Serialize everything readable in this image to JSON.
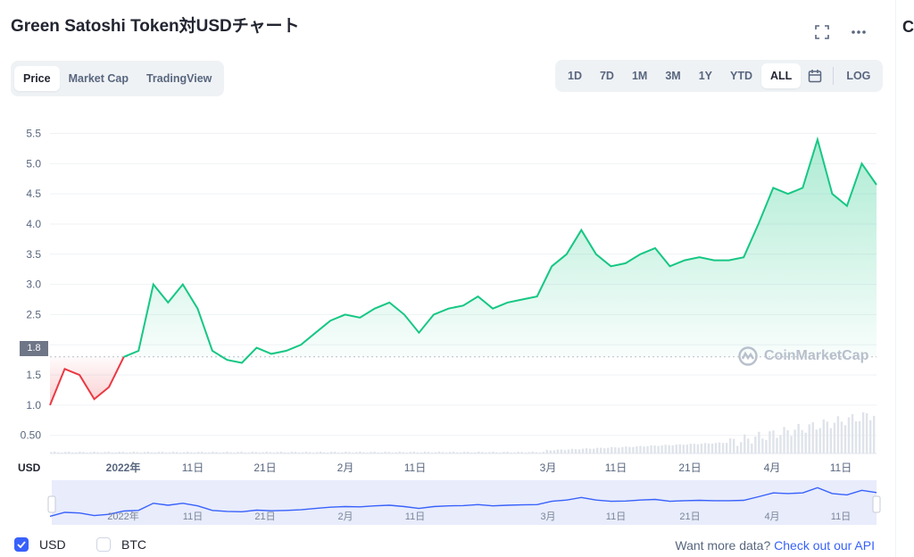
{
  "header": {
    "title": "Green Satoshi Token対USDチャート",
    "truncated_next_panel_char": "C"
  },
  "tabs": {
    "items": [
      "Price",
      "Market Cap",
      "TradingView"
    ],
    "active": "Price"
  },
  "ranges": {
    "items": [
      "1D",
      "7D",
      "1M",
      "3M",
      "1Y",
      "YTD",
      "ALL"
    ],
    "active": "ALL",
    "log_label": "LOG"
  },
  "axis": {
    "currency_label": "USD",
    "y_ticks": [
      "5.5",
      "5.0",
      "4.5",
      "4.0",
      "3.5",
      "3.0",
      "2.5",
      "2.0",
      "1.5",
      "1.0",
      "0.50"
    ],
    "x_ticks": [
      "2022年",
      "11日",
      "21日",
      "2月",
      "11日",
      "3月",
      "11日",
      "21日",
      "4月",
      "11日"
    ],
    "current_price_tag": "1.8"
  },
  "watermark": "CoinMarketCap",
  "legend": {
    "usd_label": "USD",
    "btc_label": "BTC",
    "usd_checked": true,
    "btc_checked": false
  },
  "footer": {
    "more_text": "Want more data?",
    "api_link": "Check out our API"
  },
  "colors": {
    "up": "#16c784",
    "down": "#ea3943",
    "accent": "#3861fb"
  },
  "chart_data": {
    "type": "area",
    "x": [
      "2021-12-24",
      "2021-12-26",
      "2021-12-28",
      "2021-12-30",
      "2022-01-01",
      "2022-01-03",
      "2022-01-05",
      "2022-01-07",
      "2022-01-09",
      "2022-01-11",
      "2022-01-13",
      "2022-01-15",
      "2022-01-17",
      "2022-01-19",
      "2022-01-21",
      "2022-01-23",
      "2022-01-25",
      "2022-01-27",
      "2022-01-29",
      "2022-01-31",
      "2022-02-02",
      "2022-02-04",
      "2022-02-06",
      "2022-02-08",
      "2022-02-10",
      "2022-02-12",
      "2022-02-14",
      "2022-02-16",
      "2022-02-18",
      "2022-02-20",
      "2022-02-22",
      "2022-02-24",
      "2022-02-26",
      "2022-02-28",
      "2022-03-02",
      "2022-03-04",
      "2022-03-06",
      "2022-03-08",
      "2022-03-10",
      "2022-03-12",
      "2022-03-14",
      "2022-03-16",
      "2022-03-18",
      "2022-03-20",
      "2022-03-22",
      "2022-03-24",
      "2022-03-26",
      "2022-03-28",
      "2022-03-30",
      "2022-04-01",
      "2022-04-03",
      "2022-04-05",
      "2022-04-07",
      "2022-04-09",
      "2022-04-11",
      "2022-04-13",
      "2022-04-15"
    ],
    "values": [
      1.0,
      1.6,
      1.5,
      1.1,
      1.3,
      1.8,
      1.9,
      3.0,
      2.7,
      3.0,
      2.6,
      1.9,
      1.75,
      1.7,
      1.95,
      1.85,
      1.9,
      2.0,
      2.2,
      2.4,
      2.5,
      2.45,
      2.6,
      2.7,
      2.5,
      2.2,
      2.5,
      2.6,
      2.65,
      2.8,
      2.6,
      2.7,
      2.75,
      2.8,
      3.3,
      3.5,
      3.9,
      3.5,
      3.3,
      3.35,
      3.5,
      3.6,
      3.3,
      3.4,
      3.45,
      3.4,
      3.4,
      3.45,
      4.0,
      4.6,
      4.5,
      4.6,
      5.4,
      4.5,
      4.3,
      5.0,
      4.65
    ],
    "reference_price": 1.8,
    "ylim": [
      0.2,
      5.7
    ],
    "log_scale": false,
    "grid": true,
    "legend": "bottom-left"
  }
}
